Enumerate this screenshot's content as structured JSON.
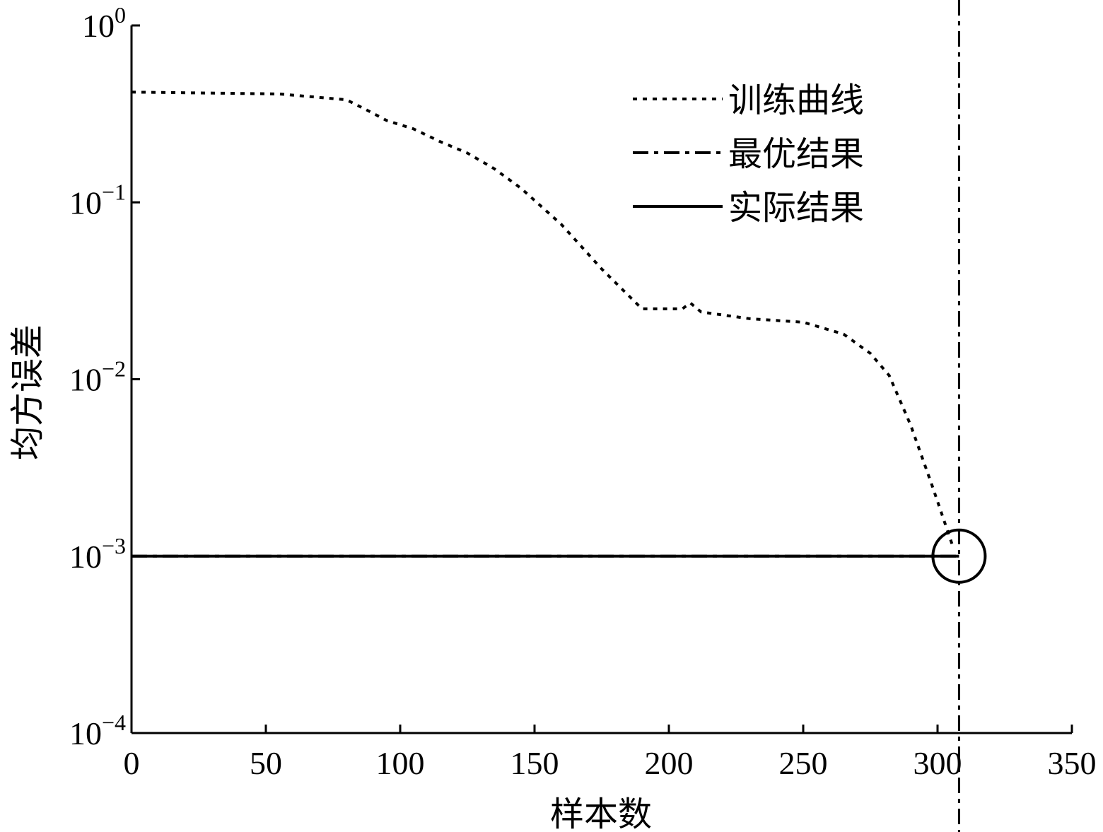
{
  "chart_data": {
    "type": "line",
    "xlabel": "样本数",
    "ylabel": "均方误差",
    "xlim": [
      0,
      350
    ],
    "ylim": [
      0.0001,
      1
    ],
    "yscale": "log",
    "grid": false,
    "legend_position": "top-right",
    "x_ticks": [
      "0",
      "50",
      "100",
      "150",
      "200",
      "250",
      "300",
      "350"
    ],
    "x_tick_values": [
      0,
      50,
      100,
      150,
      200,
      250,
      300,
      350
    ],
    "y_ticks": [
      {
        "value": 1,
        "base": "10",
        "exp": "0"
      },
      {
        "value": 0.1,
        "base": "10",
        "exp": "−1"
      },
      {
        "value": 0.01,
        "base": "10",
        "exp": "−2"
      },
      {
        "value": 0.001,
        "base": "10",
        "exp": "−3"
      },
      {
        "value": 0.0001,
        "base": "10",
        "exp": "−4"
      }
    ],
    "series": [
      {
        "name": "训练曲线",
        "style": "dotted",
        "x": [
          0,
          55,
          80,
          88,
          95,
          105,
          115,
          125,
          135,
          145,
          160,
          175,
          190,
          205,
          208,
          212,
          230,
          250,
          265,
          275,
          282,
          290,
          298,
          306
        ],
        "y": [
          0.42,
          0.41,
          0.38,
          0.33,
          0.29,
          0.26,
          0.22,
          0.19,
          0.155,
          0.12,
          0.075,
          0.042,
          0.025,
          0.025,
          0.027,
          0.024,
          0.022,
          0.021,
          0.018,
          0.014,
          0.0105,
          0.0055,
          0.0025,
          0.0011
        ]
      },
      {
        "name": "最优结果",
        "style": "dash-dot",
        "x": [
          0,
          308
        ],
        "y": [
          0.001,
          0.001
        ],
        "vertical_at_x": 308
      },
      {
        "name": "实际结果",
        "style": "solid",
        "x": [
          0,
          308
        ],
        "y": [
          0.001,
          0.001
        ]
      }
    ],
    "marker": {
      "shape": "circle",
      "x": 308,
      "y": 0.001
    },
    "colors": {
      "line": "#000000",
      "background": "#ffffff"
    }
  }
}
